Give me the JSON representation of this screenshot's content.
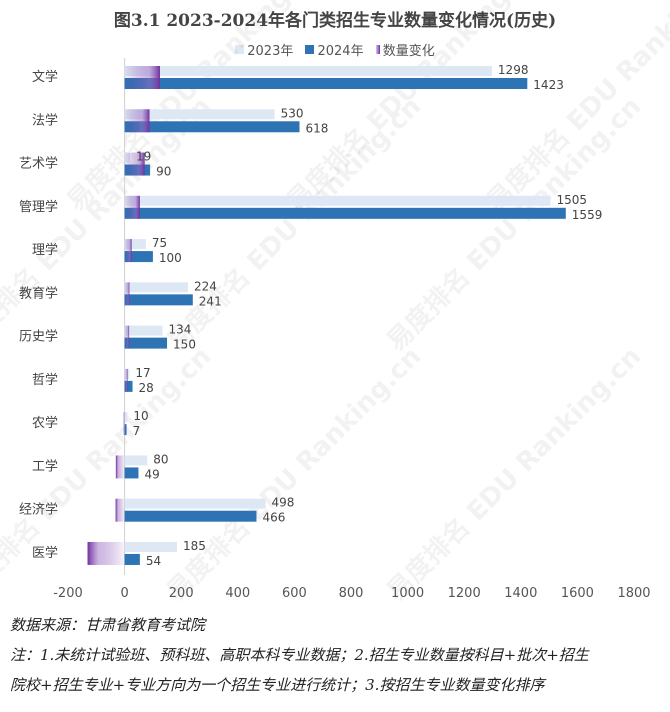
{
  "chart_data": {
    "type": "bar",
    "orientation": "horizontal",
    "title": "图3.1 2023-2024年各门类招生专业数量变化情况(历史)",
    "categories": [
      "文学",
      "法学",
      "艺术学",
      "管理学",
      "理学",
      "教育学",
      "历史学",
      "哲学",
      "农学",
      "工学",
      "经济学",
      "医学"
    ],
    "series": [
      {
        "name": "2023年",
        "color": "#dde8f4",
        "values": [
          1298,
          530,
          19,
          1505,
          75,
          224,
          134,
          17,
          10,
          80,
          498,
          185
        ]
      },
      {
        "name": "2024年",
        "color": "#2e74b5",
        "values": [
          1423,
          618,
          90,
          1559,
          100,
          241,
          150,
          28,
          7,
          49,
          466,
          54
        ]
      },
      {
        "name": "数量变化",
        "color": "#7030a0",
        "values": [
          125,
          88,
          71,
          54,
          25,
          17,
          16,
          11,
          -3,
          -31,
          -32,
          -131
        ]
      }
    ],
    "xlim": [
      -200,
      1800
    ],
    "xticks": [
      "-200",
      "0",
      "200",
      "400",
      "600",
      "800",
      "1000",
      "1200",
      "1400",
      "1600",
      "1800"
    ],
    "grid": false,
    "legend": "top"
  },
  "notes": {
    "source": "数据来源：甘肃省教育考试院",
    "line1": "注：1.未统计试验班、预科班、高职本科专业数据；2.招生专业数量按科目+批次+招生",
    "line2": "院校+招生专业+专业方向为一个招生专业进行统计；3.按招生专业数量变化排序"
  },
  "watermark": "易度排名 EDU Ranking.cn"
}
